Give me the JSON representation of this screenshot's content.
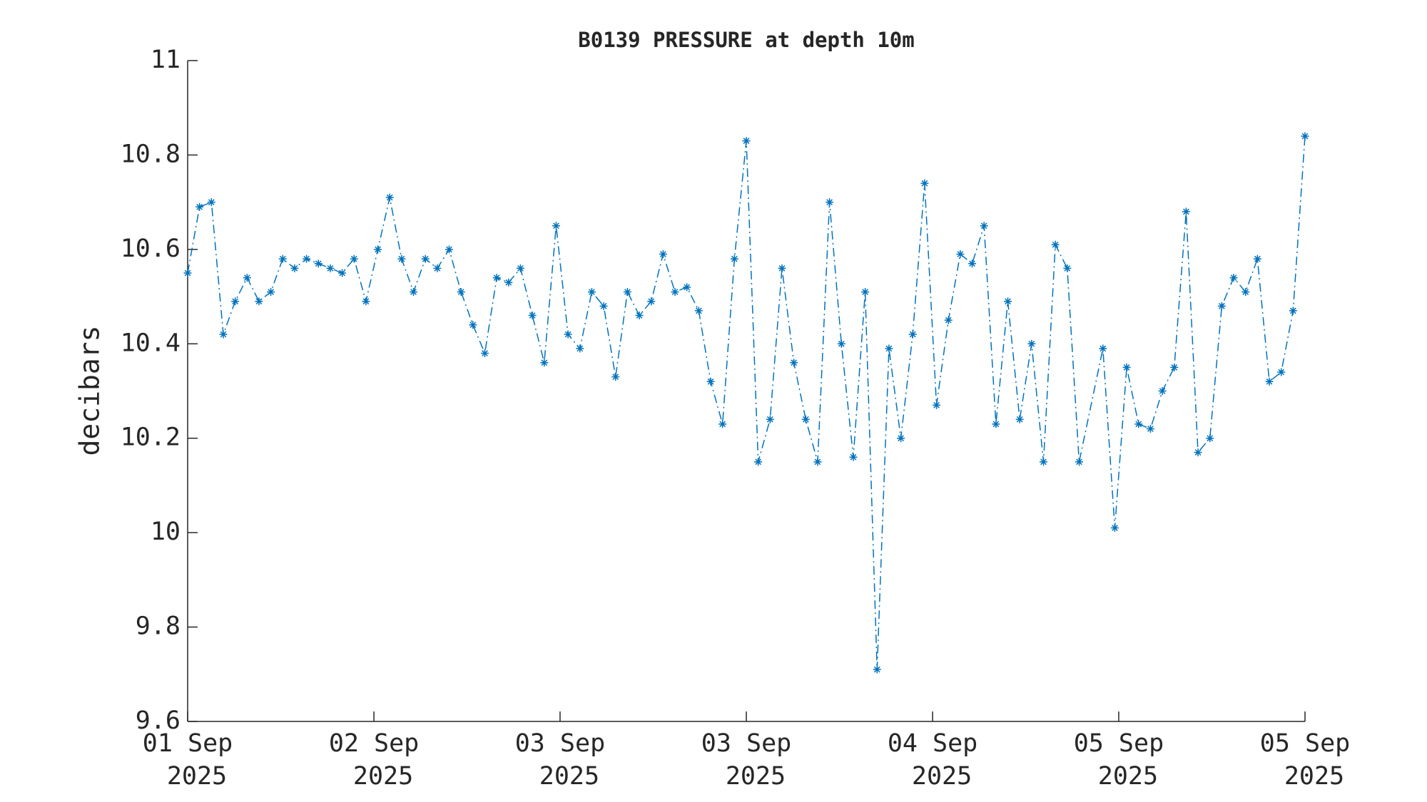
{
  "chart_data": {
    "type": "line",
    "title": "B0139 PRESSURE at depth 10m",
    "y_label": "decibars",
    "x": [
      0,
      1,
      2,
      3,
      4,
      5,
      6,
      7,
      8,
      9,
      10,
      11,
      12,
      13,
      14,
      15,
      16,
      17,
      18,
      19,
      20,
      21,
      22,
      23,
      24,
      25,
      26,
      27,
      28,
      29,
      30,
      31,
      32,
      33,
      34,
      35,
      36,
      37,
      38,
      39,
      40,
      41,
      42,
      43,
      44,
      45,
      46,
      47,
      48,
      49,
      50,
      51,
      52,
      53,
      54,
      55,
      56,
      57,
      58,
      59,
      60,
      61,
      62,
      63,
      64,
      65,
      66,
      67,
      68,
      69,
      70,
      71,
      72,
      73,
      74,
      75,
      77,
      78,
      79,
      80,
      81,
      82,
      83,
      84,
      85,
      86,
      87,
      88,
      89,
      90,
      91,
      92,
      93,
      94
    ],
    "series": [
      {
        "color": "#0072bd",
        "values": [
          10.55,
          10.69,
          10.7,
          10.42,
          10.49,
          10.54,
          10.49,
          10.51,
          10.58,
          10.56,
          10.58,
          10.57,
          10.56,
          10.55,
          10.58,
          10.49,
          10.6,
          10.71,
          10.58,
          10.51,
          10.58,
          10.56,
          10.6,
          10.51,
          10.44,
          10.38,
          10.54,
          10.53,
          10.56,
          10.46,
          10.36,
          10.65,
          10.42,
          10.39,
          10.51,
          10.48,
          10.33,
          10.51,
          10.46,
          10.49,
          10.59,
          10.51,
          10.52,
          10.47,
          10.32,
          10.23,
          10.58,
          10.83,
          10.15,
          10.24,
          10.56,
          10.36,
          10.24,
          10.15,
          10.7,
          10.4,
          10.16,
          10.51,
          9.71,
          10.39,
          10.2,
          10.42,
          10.74,
          10.27,
          10.45,
          10.59,
          10.57,
          10.65,
          10.23,
          10.49,
          10.24,
          10.4,
          10.15,
          10.61,
          10.56,
          10.15,
          10.39,
          10.01,
          10.35,
          10.23,
          10.22,
          10.3,
          10.35,
          10.68,
          10.17,
          10.2,
          10.48,
          10.54,
          10.51,
          10.58,
          10.32,
          10.34,
          10.47,
          10.84
        ]
      }
    ],
    "xlim": [
      0,
      94
    ],
    "xticks": [
      {
        "value": 0,
        "label": "01 Sep\n2025"
      },
      {
        "value": 15.67,
        "label": "02 Sep\n2025"
      },
      {
        "value": 31.33,
        "label": "03 Sep\n2025"
      },
      {
        "value": 47,
        "label": "03 Sep\n2025"
      },
      {
        "value": 62.67,
        "label": "04 Sep\n2025"
      },
      {
        "value": 78.33,
        "label": "05 Sep\n2025"
      },
      {
        "value": 94,
        "label": "05 Sep\n2025"
      }
    ],
    "ylim": [
      9.6,
      11
    ],
    "yticks": [
      9.6,
      9.8,
      10,
      10.2,
      10.4,
      10.6,
      10.8,
      11
    ],
    "grid": false,
    "line_style": "dash-dot",
    "marker": "asterisk"
  }
}
